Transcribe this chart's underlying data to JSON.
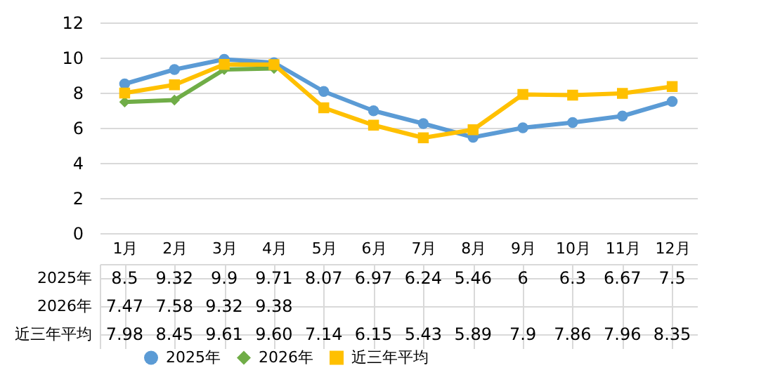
{
  "chart_data": {
    "type": "line",
    "categories": [
      "1月",
      "2月",
      "3月",
      "4月",
      "5月",
      "6月",
      "7月",
      "8月",
      "9月",
      "10月",
      "11月",
      "12月"
    ],
    "series": [
      {
        "name": "2025年",
        "color": "#5b9bd5",
        "marker": "circle",
        "values": [
          8.5,
          9.32,
          9.9,
          9.71,
          8.07,
          6.97,
          6.24,
          5.46,
          6,
          6.3,
          6.67,
          7.5
        ],
        "value_labels": [
          "8.5",
          "9.32",
          "9.9",
          "9.71",
          "8.07",
          "6.97",
          "6.24",
          "5.46",
          "6",
          "6.3",
          "6.67",
          "7.5"
        ]
      },
      {
        "name": "2026年",
        "color": "#70ad47",
        "marker": "diamond",
        "values": [
          7.47,
          7.58,
          9.32,
          9.38,
          null,
          null,
          null,
          null,
          null,
          null,
          null,
          null
        ],
        "value_labels": [
          "7.47",
          "7.58",
          "9.32",
          "9.38",
          null,
          null,
          null,
          null,
          null,
          null,
          null,
          null
        ]
      },
      {
        "name": "近三年平均",
        "color": "#ffc000",
        "marker": "square",
        "values": [
          7.98,
          8.45,
          9.61,
          9.6,
          7.14,
          6.15,
          5.43,
          5.89,
          7.9,
          7.86,
          7.96,
          8.35
        ],
        "value_labels": [
          "7.98",
          "8.45",
          "9.61",
          "9.60",
          "7.14",
          "6.15",
          "5.43",
          "5.89",
          "7.9",
          "7.86",
          "7.96",
          "8.35"
        ]
      }
    ],
    "ylim": [
      0,
      12
    ],
    "yticks": [
      0,
      2,
      4,
      6,
      8,
      10,
      12
    ],
    "grid": "y",
    "legend": "bottom",
    "line_style": "solid"
  }
}
